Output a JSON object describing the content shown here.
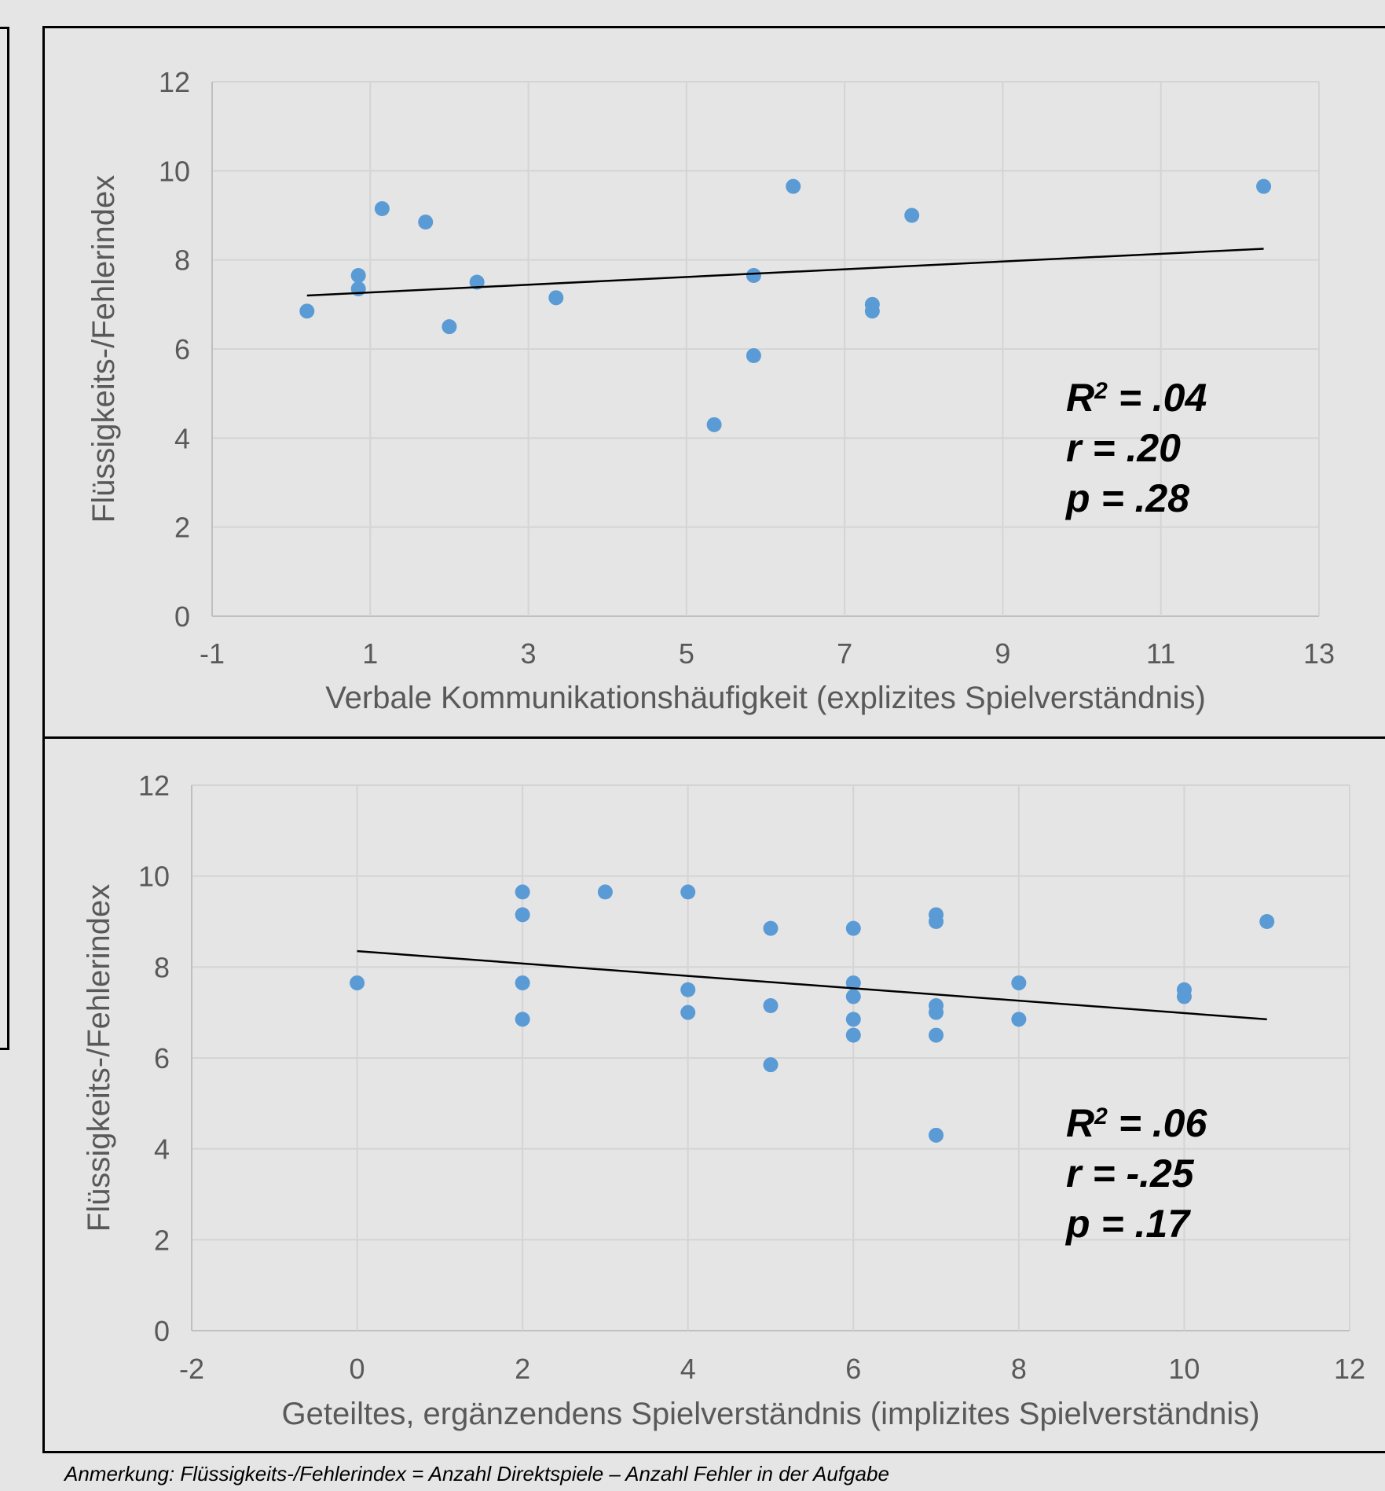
{
  "note": "Anmerkung: Flüssigkeits-/Fehlerindex = Anzahl Direktspiele – Anzahl Fehler in der Aufgabe",
  "chart_data": [
    {
      "type": "scatter",
      "xlabel": "Verbale Kommunikationshäufigkeit (explizites Spielverständnis)",
      "ylabel": "Flüssigkeits-/Fehlerindex",
      "xlim": [
        -1,
        13
      ],
      "ylim": [
        0,
        12
      ],
      "xticks": [
        -1,
        1,
        3,
        5,
        7,
        9,
        11,
        13
      ],
      "yticks": [
        0,
        2,
        4,
        6,
        8,
        10,
        12
      ],
      "grid": true,
      "point_color": "#5b9bd5",
      "trendline": {
        "x": [
          0.2,
          12.3
        ],
        "y": [
          7.2,
          8.25
        ],
        "color": "#000000"
      },
      "points": [
        {
          "x": 0.2,
          "y": 6.85
        },
        {
          "x": 0.85,
          "y": 7.65
        },
        {
          "x": 0.85,
          "y": 7.35
        },
        {
          "x": 1.15,
          "y": 9.15
        },
        {
          "x": 1.7,
          "y": 8.85
        },
        {
          "x": 2.0,
          "y": 6.5
        },
        {
          "x": 2.35,
          "y": 7.5
        },
        {
          "x": 3.35,
          "y": 7.15
        },
        {
          "x": 5.35,
          "y": 4.3
        },
        {
          "x": 5.85,
          "y": 7.65
        },
        {
          "x": 5.85,
          "y": 5.85
        },
        {
          "x": 6.35,
          "y": 9.65
        },
        {
          "x": 7.35,
          "y": 7.0
        },
        {
          "x": 7.35,
          "y": 6.85
        },
        {
          "x": 7.85,
          "y": 9.0
        },
        {
          "x": 12.3,
          "y": 9.65
        }
      ],
      "stats": {
        "r2_label": "R",
        "r2_sup": "2",
        "r2_value": " = .04",
        "r_label": "r",
        "r_value": " = .20",
        "p_label": "p",
        "p_value": " = .28"
      }
    },
    {
      "type": "scatter",
      "xlabel": "Geteiltes, ergänzendens Spielverständnis (implizites Spielverständnis)",
      "ylabel": "Flüssigkeits-/Fehlerindex",
      "xlim": [
        -2,
        12
      ],
      "ylim": [
        0,
        12
      ],
      "xticks": [
        -2,
        0,
        2,
        4,
        6,
        8,
        10,
        12
      ],
      "yticks": [
        0,
        2,
        4,
        6,
        8,
        10,
        12
      ],
      "grid": true,
      "point_color": "#5b9bd5",
      "trendline": {
        "x": [
          0,
          11
        ],
        "y": [
          8.35,
          6.85
        ],
        "color": "#000000"
      },
      "points": [
        {
          "x": 0,
          "y": 7.65
        },
        {
          "x": 2,
          "y": 9.65
        },
        {
          "x": 2,
          "y": 9.15
        },
        {
          "x": 2,
          "y": 7.65
        },
        {
          "x": 2,
          "y": 6.85
        },
        {
          "x": 3,
          "y": 9.65
        },
        {
          "x": 4,
          "y": 9.65
        },
        {
          "x": 4,
          "y": 7.5
        },
        {
          "x": 4,
          "y": 7.0
        },
        {
          "x": 5,
          "y": 8.85
        },
        {
          "x": 5,
          "y": 7.15
        },
        {
          "x": 5,
          "y": 5.85
        },
        {
          "x": 6,
          "y": 8.85
        },
        {
          "x": 6,
          "y": 7.65
        },
        {
          "x": 6,
          "y": 7.35
        },
        {
          "x": 6,
          "y": 6.85
        },
        {
          "x": 6,
          "y": 6.5
        },
        {
          "x": 7,
          "y": 9.15
        },
        {
          "x": 7,
          "y": 9.0
        },
        {
          "x": 7,
          "y": 7.15
        },
        {
          "x": 7,
          "y": 7.0
        },
        {
          "x": 7,
          "y": 6.5
        },
        {
          "x": 7,
          "y": 4.3
        },
        {
          "x": 8,
          "y": 7.65
        },
        {
          "x": 8,
          "y": 6.85
        },
        {
          "x": 10,
          "y": 7.5
        },
        {
          "x": 10,
          "y": 7.35
        },
        {
          "x": 11,
          "y": 9.0
        }
      ],
      "stats": {
        "r2_label": "R",
        "r2_sup": "2",
        "r2_value": " = .06",
        "r_label": "r",
        "r_value": " = -.25",
        "p_label": "p",
        "p_value": " = .17"
      }
    }
  ]
}
